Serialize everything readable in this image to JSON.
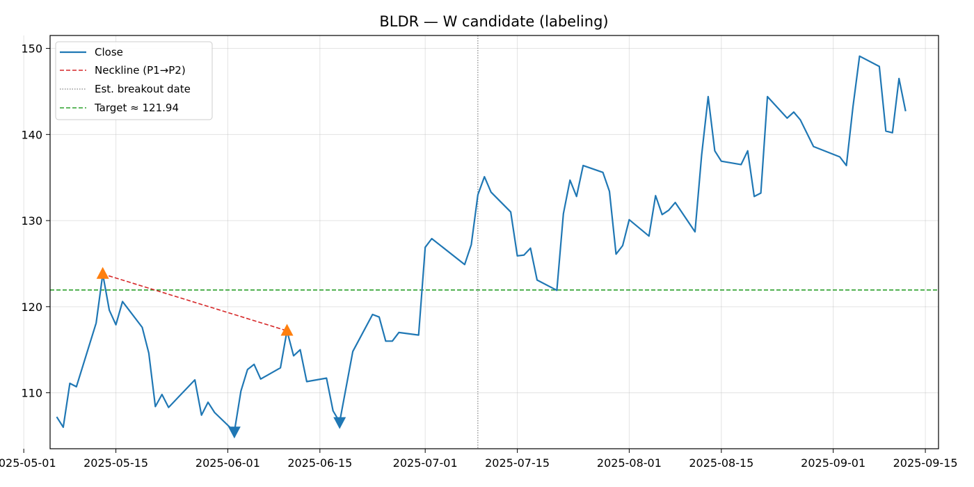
{
  "chart_data": {
    "type": "line",
    "title": "BLDR — W candidate (labeling)",
    "xlabel": "",
    "ylabel": "",
    "x_range": [
      "2025-05-05",
      "2025-09-17"
    ],
    "y_range": [
      103.5,
      151.5
    ],
    "x_ticks": [
      "2025-05-01",
      "2025-05-15",
      "2025-06-01",
      "2025-06-15",
      "2025-07-01",
      "2025-07-15",
      "2025-08-01",
      "2025-08-15",
      "2025-09-01",
      "2025-09-15"
    ],
    "y_ticks": [
      110,
      120,
      130,
      140,
      150
    ],
    "grid": true,
    "legend_placement": "top-left",
    "series": [
      {
        "name": "Close",
        "color": "#1f77b4",
        "x": [
          "2025-05-06",
          "2025-05-07",
          "2025-05-08",
          "2025-05-09",
          "2025-05-12",
          "2025-05-13",
          "2025-05-14",
          "2025-05-15",
          "2025-05-16",
          "2025-05-19",
          "2025-05-20",
          "2025-05-21",
          "2025-05-22",
          "2025-05-23",
          "2025-05-27",
          "2025-05-28",
          "2025-05-29",
          "2025-05-30",
          "2025-06-02",
          "2025-06-03",
          "2025-06-04",
          "2025-06-05",
          "2025-06-06",
          "2025-06-09",
          "2025-06-10",
          "2025-06-11",
          "2025-06-12",
          "2025-06-13",
          "2025-06-16",
          "2025-06-17",
          "2025-06-18",
          "2025-06-20",
          "2025-06-23",
          "2025-06-24",
          "2025-06-25",
          "2025-06-26",
          "2025-06-27",
          "2025-06-30",
          "2025-07-01",
          "2025-07-02",
          "2025-07-07",
          "2025-07-08",
          "2025-07-09",
          "2025-07-10",
          "2025-07-11",
          "2025-07-14",
          "2025-07-15",
          "2025-07-16",
          "2025-07-17",
          "2025-07-18",
          "2025-07-21",
          "2025-07-22",
          "2025-07-23",
          "2025-07-24",
          "2025-07-25",
          "2025-07-28",
          "2025-07-29",
          "2025-07-30",
          "2025-07-31",
          "2025-08-01",
          "2025-08-04",
          "2025-08-05",
          "2025-08-06",
          "2025-08-07",
          "2025-08-08",
          "2025-08-11",
          "2025-08-12",
          "2025-08-13",
          "2025-08-14",
          "2025-08-15",
          "2025-08-18",
          "2025-08-19",
          "2025-08-20",
          "2025-08-21",
          "2025-08-22",
          "2025-08-25",
          "2025-08-26",
          "2025-08-27",
          "2025-08-29",
          "2025-09-02",
          "2025-09-03",
          "2025-09-04",
          "2025-09-05",
          "2025-09-08",
          "2025-09-09",
          "2025-09-10",
          "2025-09-11",
          "2025-09-12"
        ],
        "values": [
          107.2,
          106.0,
          111.1,
          110.7,
          118.1,
          123.8,
          119.6,
          117.9,
          120.6,
          117.6,
          114.6,
          108.4,
          109.8,
          108.3,
          111.5,
          107.4,
          108.9,
          107.7,
          105.5,
          110.2,
          112.7,
          113.3,
          111.6,
          112.9,
          117.2,
          114.3,
          115.0,
          111.3,
          111.7,
          107.9,
          106.6,
          114.8,
          119.1,
          118.8,
          116.0,
          116.0,
          117.0,
          116.7,
          126.9,
          127.9,
          124.9,
          127.2,
          133.0,
          135.1,
          133.3,
          131.0,
          125.9,
          126.0,
          126.8,
          123.1,
          121.9,
          130.8,
          134.7,
          132.8,
          136.4,
          135.6,
          133.4,
          126.1,
          127.1,
          130.1,
          128.2,
          132.9,
          130.7,
          131.2,
          132.1,
          128.7,
          137.6,
          144.4,
          138.1,
          136.9,
          136.5,
          138.1,
          132.8,
          133.2,
          144.4,
          141.9,
          142.6,
          141.7,
          138.6,
          137.4,
          136.4,
          143.2,
          149.1,
          147.9,
          140.4,
          140.2,
          146.5,
          142.7
        ]
      }
    ],
    "neckline": {
      "name": "Neckline (P1→P2)",
      "color": "#d62728",
      "points": [
        [
          "2025-05-13",
          123.8
        ],
        [
          "2025-06-10",
          117.2
        ]
      ]
    },
    "breakout": {
      "name": "Est. breakout date",
      "color": "#808080",
      "date": "2025-07-09"
    },
    "target": {
      "name": "Target ≈ 121.94",
      "color": "#2ca02c",
      "value": 121.94
    },
    "peaks": {
      "color": "#ff7f0e",
      "points": [
        [
          "2025-05-13",
          123.8
        ],
        [
          "2025-06-10",
          117.2
        ]
      ]
    },
    "troughs": {
      "color": "#1f77b4",
      "points": [
        [
          "2025-06-02",
          105.5
        ],
        [
          "2025-06-18",
          106.6
        ]
      ]
    }
  }
}
